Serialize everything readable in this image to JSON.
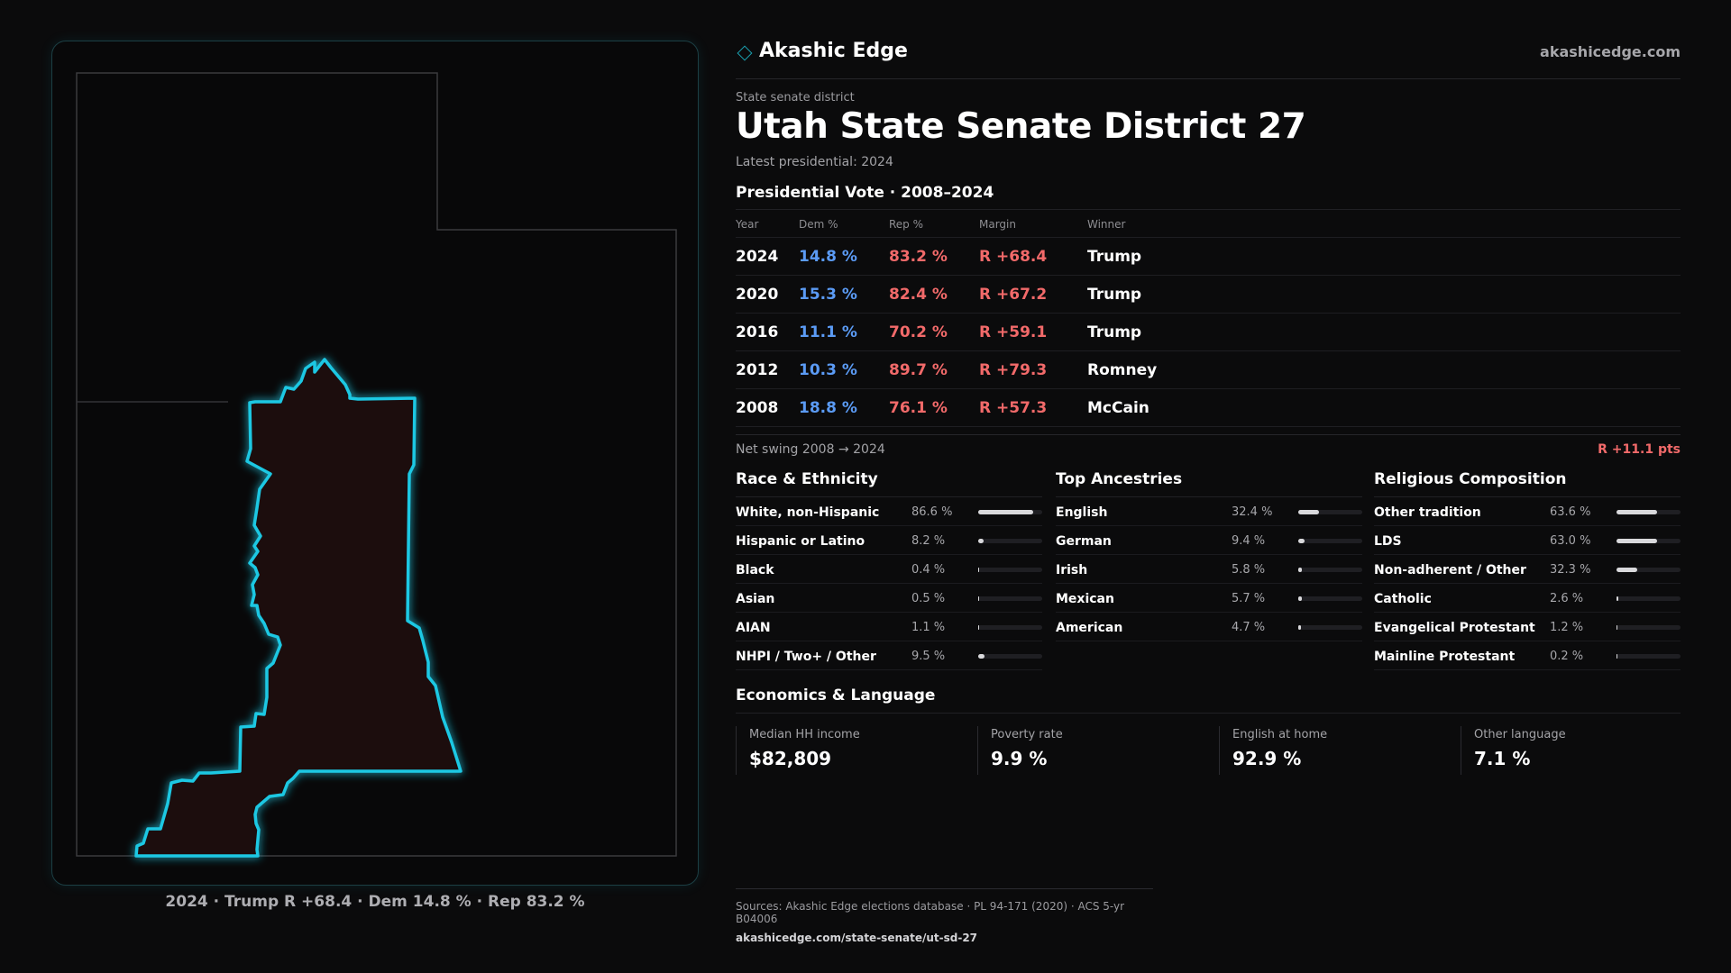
{
  "brand": {
    "name": "Akashic Edge",
    "url": "akashicedge.com"
  },
  "district": {
    "kicker": "State senate district",
    "title": "Utah State Senate District 27",
    "latest": "Latest presidential: 2024"
  },
  "presidential": {
    "title": "Presidential Vote · 2008–2024",
    "headers": {
      "year": "Year",
      "dem": "Dem %",
      "rep": "Rep %",
      "margin": "Margin",
      "winner": "Winner"
    },
    "rows": [
      {
        "year": "2024",
        "dem": "14.8 %",
        "rep": "83.2 %",
        "margin": "R +68.4",
        "winner": "Trump"
      },
      {
        "year": "2020",
        "dem": "15.3 %",
        "rep": "82.4 %",
        "margin": "R +67.2",
        "winner": "Trump"
      },
      {
        "year": "2016",
        "dem": "11.1 %",
        "rep": "70.2 %",
        "margin": "R +59.1",
        "winner": "Trump"
      },
      {
        "year": "2012",
        "dem": "10.3 %",
        "rep": "89.7 %",
        "margin": "R +79.3",
        "winner": "Romney"
      },
      {
        "year": "2008",
        "dem": "18.8 %",
        "rep": "76.1 %",
        "margin": "R +57.3",
        "winner": "McCain"
      }
    ],
    "swing_label": "Net swing 2008 → 2024",
    "swing_value": "R +11.1 pts"
  },
  "race": {
    "title": "Race & Ethnicity",
    "items": [
      {
        "label": "White, non-Hispanic",
        "value": "86.6 %",
        "pct": 86.6
      },
      {
        "label": "Hispanic or Latino",
        "value": "8.2 %",
        "pct": 8.2
      },
      {
        "label": "Black",
        "value": "0.4 %",
        "pct": 0.4
      },
      {
        "label": "Asian",
        "value": "0.5 %",
        "pct": 0.5
      },
      {
        "label": "AIAN",
        "value": "1.1 %",
        "pct": 1.1
      },
      {
        "label": "NHPI / Two+ / Other",
        "value": "9.5 %",
        "pct": 9.5
      }
    ]
  },
  "ancestry": {
    "title": "Top Ancestries",
    "items": [
      {
        "label": "English",
        "value": "32.4 %",
        "pct": 32.4
      },
      {
        "label": "German",
        "value": "9.4 %",
        "pct": 9.4
      },
      {
        "label": "Irish",
        "value": "5.8 %",
        "pct": 5.8
      },
      {
        "label": "Mexican",
        "value": "5.7 %",
        "pct": 5.7
      },
      {
        "label": "American",
        "value": "4.7 %",
        "pct": 4.7
      }
    ]
  },
  "religion": {
    "title": "Religious Composition",
    "items": [
      {
        "label": "Other tradition",
        "value": "63.6 %",
        "pct": 63.6
      },
      {
        "label": "LDS",
        "value": "63.0 %",
        "pct": 63.0
      },
      {
        "label": "Non-adherent / Other",
        "value": "32.3 %",
        "pct": 32.3
      },
      {
        "label": "Catholic",
        "value": "2.6 %",
        "pct": 2.6
      },
      {
        "label": "Evangelical Protestant",
        "value": "1.2 %",
        "pct": 1.2
      },
      {
        "label": "Mainline Protestant",
        "value": "0.2 %",
        "pct": 0.2
      }
    ]
  },
  "economics": {
    "title": "Economics & Language",
    "stats": [
      {
        "label": "Median HH income",
        "value": "$82,809"
      },
      {
        "label": "Poverty rate",
        "value": "9.9 %"
      },
      {
        "label": "English at home",
        "value": "92.9 %"
      },
      {
        "label": "Other language",
        "value": "7.1 %"
      }
    ]
  },
  "map": {
    "caption": "2024 · Trump R +68.4 · Dem 14.8 % · Rep 83.2 %",
    "district_fill": "#1c0f10",
    "outline_color": "#1fc8e3"
  },
  "sources": {
    "line": "Sources: Akashic Edge elections database · PL 94-171 (2020) · ACS 5-yr B04006",
    "url": "akashicedge.com/state-senate/ut-sd-27"
  }
}
